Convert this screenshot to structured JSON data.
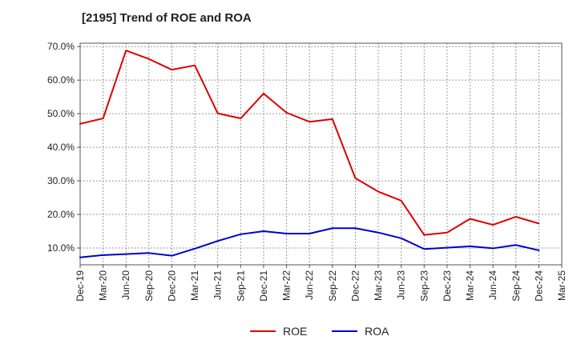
{
  "chart_data": {
    "type": "line",
    "title": "[2195]  Trend of ROE and ROA",
    "xlabel": "",
    "ylabel": "",
    "x_ticks": [
      "Dec-19",
      "Mar-20",
      "Jun-20",
      "Sep-20",
      "Dec-20",
      "Mar-21",
      "Jun-21",
      "Sep-21",
      "Dec-21",
      "Mar-22",
      "Jun-22",
      "Sep-22",
      "Dec-22",
      "Mar-23",
      "Jun-23",
      "Sep-23",
      "Dec-23",
      "Mar-24",
      "Jun-24",
      "Sep-24",
      "Dec-24",
      "Mar-25"
    ],
    "y_ticks": [
      "10.0%",
      "20.0%",
      "30.0%",
      "40.0%",
      "50.0%",
      "60.0%",
      "70.0%"
    ],
    "y_tick_values": [
      10,
      20,
      30,
      40,
      50,
      60,
      70
    ],
    "ylim": [
      5,
      71
    ],
    "grid": true,
    "legend_position": "bottom",
    "series": [
      {
        "name": "ROE",
        "color": "#dd0000",
        "x": [
          "Dec-19",
          "Mar-20",
          "Jun-20",
          "Sep-20",
          "Dec-20",
          "Mar-21",
          "Jun-21",
          "Sep-21",
          "Dec-21",
          "Mar-22",
          "Jun-22",
          "Sep-22",
          "Dec-22",
          "Mar-23",
          "Jun-23",
          "Sep-23",
          "Dec-23",
          "Mar-24",
          "Jun-24",
          "Sep-24",
          "Dec-24"
        ],
        "values": [
          47.0,
          48.6,
          68.8,
          66.3,
          63.1,
          64.4,
          50.1,
          48.6,
          56.0,
          50.3,
          47.6,
          48.4,
          30.8,
          26.8,
          24.1,
          13.9,
          14.6,
          18.7,
          16.9,
          19.3,
          17.3
        ]
      },
      {
        "name": "ROA",
        "color": "#0000cc",
        "x": [
          "Dec-19",
          "Mar-20",
          "Jun-20",
          "Sep-20",
          "Dec-20",
          "Mar-21",
          "Jun-21",
          "Sep-21",
          "Dec-21",
          "Mar-22",
          "Jun-22",
          "Sep-22",
          "Dec-22",
          "Mar-23",
          "Jun-23",
          "Sep-23",
          "Dec-23",
          "Mar-24",
          "Jun-24",
          "Sep-24",
          "Dec-24"
        ],
        "values": [
          7.2,
          7.9,
          8.2,
          8.5,
          7.7,
          9.8,
          12.1,
          14.1,
          15.0,
          14.3,
          14.3,
          15.9,
          15.9,
          14.6,
          12.9,
          9.7,
          10.1,
          10.5,
          9.9,
          10.9,
          9.3
        ]
      }
    ]
  }
}
